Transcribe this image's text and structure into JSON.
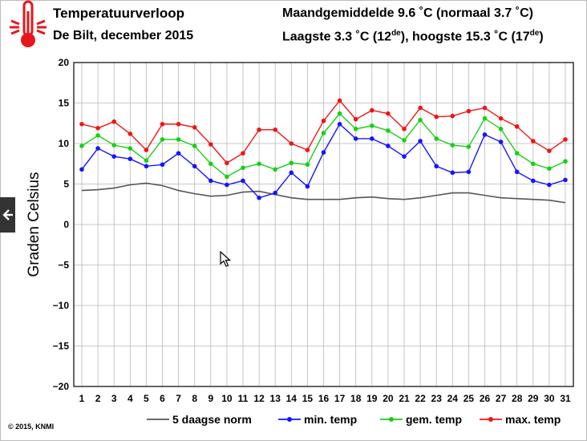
{
  "header": {
    "title": "Temperatuurverloop",
    "subtitle": "De Bilt, december 2015",
    "stat_line1": "Maandgemiddelde 9.6 ˚C (normaal 3.7 ˚C)",
    "stat_line2_a": "Laagste 3.3 ˚C (12",
    "stat_line2_sup1": "de",
    "stat_line2_b": "), hoogste 15.3 ˚C (17",
    "stat_line2_sup2": "de",
    "stat_line2_c": ")"
  },
  "footer": {
    "copyright": "© 2015, KNMI"
  },
  "icons": {
    "logo": "thermometer-icon",
    "nav": "left-arrow-icon",
    "cursor": "mouse-pointer-icon"
  },
  "chart_data": {
    "type": "line",
    "ylabel": "Graden Celsius",
    "ylim": [
      -20,
      20
    ],
    "yticks": [
      -20,
      -15,
      -10,
      -5,
      0,
      5,
      10,
      15,
      20
    ],
    "x": [
      1,
      2,
      3,
      4,
      5,
      6,
      7,
      8,
      9,
      10,
      11,
      12,
      13,
      14,
      15,
      16,
      17,
      18,
      19,
      20,
      21,
      22,
      23,
      24,
      25,
      26,
      27,
      28,
      29,
      30,
      31
    ],
    "grid": true,
    "legend_position": "bottom",
    "series": [
      {
        "name": "5 daagse norm",
        "color": "#555555",
        "markers": false,
        "values": [
          4.2,
          4.3,
          4.5,
          4.9,
          5.1,
          4.8,
          4.2,
          3.8,
          3.5,
          3.6,
          4.0,
          4.1,
          3.7,
          3.3,
          3.1,
          3.1,
          3.1,
          3.3,
          3.4,
          3.2,
          3.1,
          3.3,
          3.6,
          3.9,
          3.9,
          3.6,
          3.3,
          3.2,
          3.1,
          3.0,
          2.7
        ]
      },
      {
        "name": "min. temp",
        "color": "#1515ff",
        "markers": true,
        "values": [
          6.8,
          9.4,
          8.4,
          8.1,
          7.2,
          7.4,
          8.8,
          7.2,
          5.4,
          4.9,
          5.4,
          3.3,
          3.9,
          6.4,
          4.7,
          8.9,
          12.4,
          10.6,
          10.6,
          9.7,
          8.4,
          10.3,
          7.2,
          6.4,
          6.5,
          11.1,
          10.2,
          6.5,
          5.4,
          4.9,
          5.5
        ]
      },
      {
        "name": "gem. temp",
        "color": "#16d016",
        "markers": true,
        "values": [
          9.7,
          11.0,
          9.8,
          9.4,
          7.9,
          10.5,
          10.5,
          9.7,
          7.5,
          5.9,
          7.0,
          7.5,
          6.8,
          7.6,
          7.4,
          11.3,
          13.7,
          11.8,
          12.2,
          11.6,
          10.4,
          12.9,
          10.6,
          9.8,
          9.6,
          13.1,
          11.8,
          8.8,
          7.5,
          6.9,
          7.8
        ]
      },
      {
        "name": "max. temp",
        "color": "#f01515",
        "markers": true,
        "values": [
          12.4,
          11.9,
          12.7,
          11.2,
          9.2,
          12.4,
          12.4,
          12.0,
          9.9,
          7.6,
          8.8,
          11.7,
          11.7,
          10.0,
          9.2,
          12.8,
          15.3,
          13.0,
          14.1,
          13.7,
          11.8,
          14.4,
          13.3,
          13.4,
          14.0,
          14.4,
          13.1,
          12.1,
          10.3,
          9.1,
          10.5
        ]
      }
    ]
  }
}
